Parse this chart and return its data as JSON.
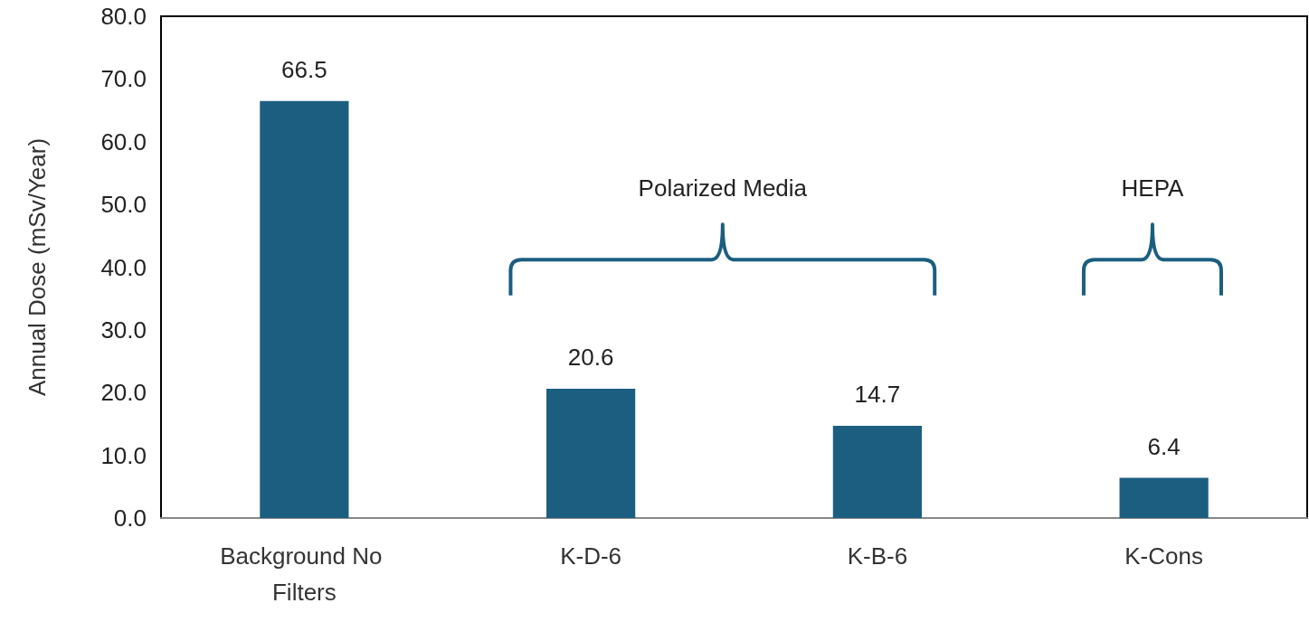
{
  "chart_data": {
    "type": "bar",
    "ylabel": "Annual Dose (mSv/Year)",
    "categories": [
      "Background No Filters",
      "K-D-6",
      "K-B-6",
      "K-Cons"
    ],
    "values": [
      66.5,
      20.6,
      14.7,
      6.4
    ],
    "color": "#1b5e80",
    "ylim": [
      0,
      80
    ],
    "yticks": [
      {
        "value": 0,
        "label": "0.0"
      },
      {
        "value": 10,
        "label": "10.0"
      },
      {
        "value": 20,
        "label": "20.0"
      },
      {
        "value": 30,
        "label": "30.0"
      },
      {
        "value": 40,
        "label": "40.0"
      },
      {
        "value": 50,
        "label": "50.0"
      },
      {
        "value": 60,
        "label": "60.0"
      },
      {
        "value": 70,
        "label": "70.0"
      },
      {
        "value": 80,
        "label": "80.0"
      }
    ],
    "data_labels": true,
    "grid": false,
    "annotations": [
      "Polarized Media",
      "HEPA"
    ]
  }
}
